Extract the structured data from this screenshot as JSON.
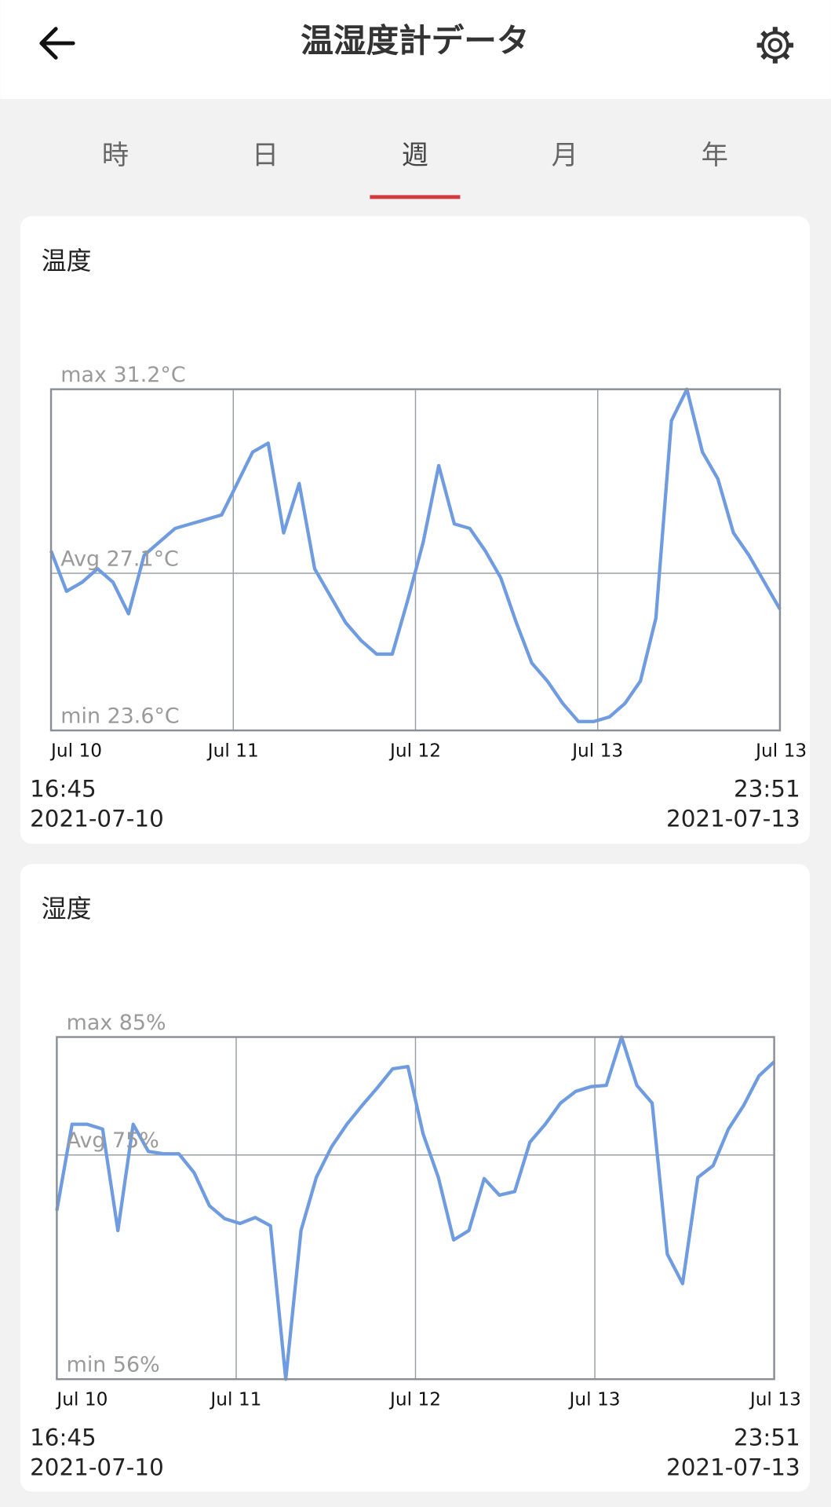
{
  "header": {
    "title": "温湿度計データ"
  },
  "tabs": {
    "items": [
      "時",
      "日",
      "週",
      "月",
      "年"
    ],
    "selected": 2
  },
  "cards": [
    {
      "title": "温度",
      "chart_data": {
        "type": "line",
        "x_labels": [
          "Jul 10",
          "Jul 11",
          "Jul 12",
          "Jul 13",
          "Jul 13"
        ],
        "series": [
          {
            "color": "#6f9be0",
            "values": [
              27.6,
              26.7,
              26.9,
              27.2,
              26.9,
              26.2,
              27.5,
              27.8,
              28.1,
              28.2,
              28.3,
              28.4,
              29.1,
              29.8,
              30.0,
              28.0,
              29.1,
              27.2,
              26.6,
              26.0,
              25.6,
              25.3,
              25.3,
              26.5,
              27.8,
              29.5,
              28.2,
              28.1,
              27.6,
              27.0,
              26.0,
              25.1,
              24.7,
              24.2,
              23.8,
              23.8,
              23.9,
              24.2,
              24.7,
              26.1,
              30.5,
              31.2,
              29.8,
              29.2,
              28.0,
              27.5,
              26.9,
              26.3
            ]
          }
        ],
        "ylim": [
          23.6,
          31.2
        ],
        "yticks": [
          {
            "value": 31.2,
            "label": "max 31.2°C"
          },
          {
            "value": 27.1,
            "label": "Avg 27.1°C"
          },
          {
            "value": 23.6,
            "label": "min 23.6°C"
          }
        ],
        "grid": true
      },
      "start": {
        "time": "16:45",
        "date": "2021-07-10"
      },
      "end": {
        "time": "23:51",
        "date": "2021-07-13"
      }
    },
    {
      "title": "湿度",
      "chart_data": {
        "type": "line",
        "x_labels": [
          "Jul 10",
          "Jul 11",
          "Jul 12",
          "Jul 13",
          "Jul 13"
        ],
        "series": [
          {
            "color": "#6f9be0",
            "values": [
              70.3,
              77.6,
              77.6,
              77.2,
              68.6,
              77.6,
              75.3,
              75.1,
              75.1,
              73.5,
              70.7,
              69.6,
              69.2,
              69.7,
              69.0,
              56.0,
              68.6,
              73.1,
              75.7,
              77.6,
              79.2,
              80.7,
              82.3,
              82.5,
              76.8,
              73.1,
              67.8,
              68.6,
              73.0,
              71.6,
              71.9,
              76.1,
              77.6,
              79.4,
              80.4,
              80.8,
              80.9,
              85.0,
              80.9,
              79.4,
              66.6,
              64.1,
              73.1,
              74.1,
              77.2,
              79.2,
              81.7,
              82.9
            ]
          }
        ],
        "ylim": [
          56,
          85
        ],
        "yticks": [
          {
            "value": 85,
            "label": "max 85%"
          },
          {
            "value": 75,
            "label": "Avg 75%"
          },
          {
            "value": 56,
            "label": "min 56%"
          }
        ],
        "grid": true
      },
      "start": {
        "time": "16:45",
        "date": "2021-07-10"
      },
      "end": {
        "time": "23:51",
        "date": "2021-07-13"
      }
    }
  ]
}
